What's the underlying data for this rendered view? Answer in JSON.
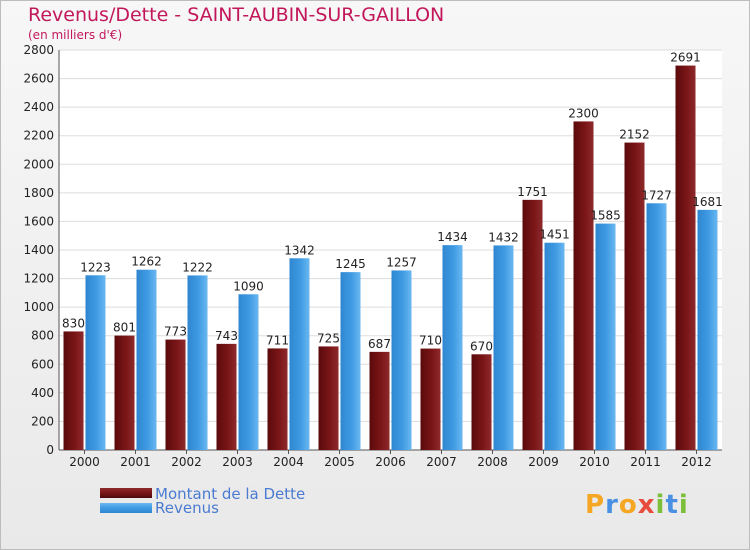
{
  "chart_data": {
    "type": "bar",
    "title": "Revenus/Dette - SAINT-AUBIN-SUR-GAILLON",
    "subtitle": "(en milliers d'€)",
    "categories": [
      "2000",
      "2001",
      "2002",
      "2003",
      "2004",
      "2005",
      "2006",
      "2007",
      "2008",
      "2009",
      "2010",
      "2011",
      "2012"
    ],
    "series": [
      {
        "name": "Montant de la Dette",
        "color": "#7a1517",
        "values": [
          830,
          801,
          773,
          743,
          711,
          725,
          687,
          710,
          670,
          1751,
          2300,
          2152,
          2691
        ]
      },
      {
        "name": "Revenus",
        "color": "#3f9be3",
        "values": [
          1223,
          1262,
          1222,
          1090,
          1342,
          1245,
          1257,
          1434,
          1432,
          1451,
          1585,
          1727,
          1681
        ]
      }
    ],
    "ylim": [
      0,
      2800
    ],
    "yticks": [
      0,
      200,
      400,
      600,
      800,
      1000,
      1200,
      1400,
      1600,
      1800,
      2000,
      2200,
      2400,
      2600,
      2800
    ],
    "grid": true,
    "legend": "bottom-left",
    "xlabel": "",
    "ylabel": ""
  },
  "logo": {
    "text": "Proxiti",
    "letters": [
      "P",
      "r",
      "o",
      "x",
      "i",
      "t",
      "i"
    ],
    "colors": [
      "#f5a623",
      "#4a90e2",
      "#f5a623",
      "#e84c3d",
      "#7bbf3a",
      "#4a90e2",
      "#7bbf3a"
    ]
  }
}
